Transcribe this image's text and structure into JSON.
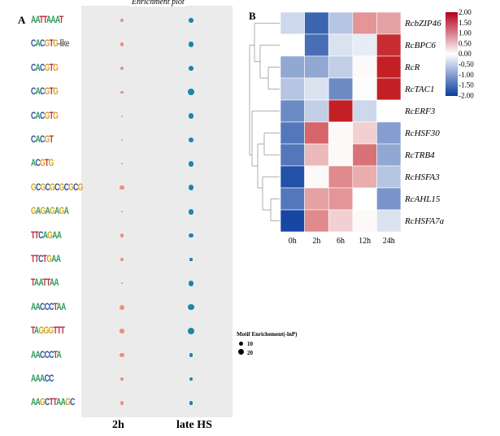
{
  "panels": {
    "a": "A",
    "b": "B"
  },
  "chart_data": [
    {
      "type": "scatter",
      "title": "Enrichment plot",
      "categories": [
        "2h",
        "late HS"
      ],
      "motifs": [
        "AATTAAAT",
        "CACGTG-like",
        "CACGTG",
        "CACGTG",
        "CACGTG",
        "CACGT",
        "ACGTG",
        "GCGCGCGCGCG",
        "GAGAGAGA",
        "TTCAGAA",
        "TTCTGAA",
        "TAATTAA",
        "AACCCTAA",
        "TAGGGTTT",
        "AACCCTA",
        "AAACC",
        "AAGCTTAAGC"
      ],
      "series": [
        {
          "name": "2h",
          "color": "#e8927a",
          "values": [
            8,
            8,
            8,
            6,
            2,
            2,
            2,
            9,
            2,
            8,
            7,
            2,
            11,
            10,
            9,
            8,
            8
          ]
        },
        {
          "name": "late HS",
          "color": "#1a86a8",
          "values": [
            10,
            12,
            10,
            14,
            12,
            12,
            12,
            12,
            12,
            9,
            6,
            12,
            13,
            15,
            8,
            8,
            8
          ]
        }
      ],
      "legend": {
        "title": "Motif Enrichement(-lnP)",
        "entries": [
          10,
          20
        ],
        "placement": "right"
      }
    },
    {
      "type": "heatmap",
      "x": [
        "0h",
        "2h",
        "6h",
        "12h",
        "24h"
      ],
      "y": [
        "RcbZIP46",
        "RcBPC6",
        "RcR",
        "RcTAC1",
        "RcERF3",
        "RcHSF30",
        "RcTRB4",
        "RcHSFA3",
        "RcAHL15",
        "RcHSFA7a"
      ],
      "values": [
        [
          -0.4,
          -1.6,
          -0.6,
          0.9,
          0.8
        ],
        [
          0,
          -1.5,
          -0.3,
          -0.2,
          1.8
        ],
        [
          -0.9,
          -0.9,
          -0.5,
          0.05,
          1.9
        ],
        [
          -0.6,
          -0.3,
          -1.2,
          0.02,
          1.9
        ],
        [
          -1.2,
          -0.5,
          1.9,
          -0.4,
          0
        ],
        [
          -1.4,
          1.3,
          0.05,
          0.4,
          -1.0
        ],
        [
          -1.4,
          0.6,
          0.05,
          1.2,
          -0.9
        ],
        [
          -1.8,
          0.05,
          1.0,
          0.7,
          -0.6
        ],
        [
          -1.4,
          0.8,
          0.9,
          0,
          -1.1
        ],
        [
          -1.9,
          1.0,
          0.4,
          0.05,
          -0.3
        ]
      ],
      "colorbar": {
        "range": [
          -2,
          2
        ],
        "ticks": [
          "2.00",
          "1.50",
          "1.00",
          "0.50",
          "0.00",
          "-0.50",
          "-1.00",
          "-1.50",
          "-2.00"
        ],
        "low": "#0a3d9e",
        "mid": "#ffffff",
        "high": "#c0141b"
      }
    }
  ]
}
